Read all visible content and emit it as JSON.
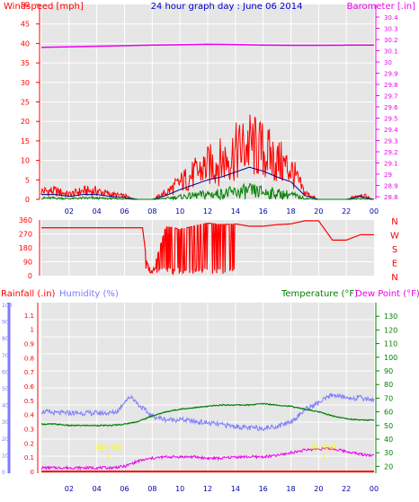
{
  "colors": {
    "background": "#ffffff",
    "plot_background": "#e6e6e6",
    "grid": "#ffffff",
    "wind": "#ff0000",
    "wind_avg": "#00008b",
    "wind_low": "#008000",
    "barometer": "#ee00ee",
    "direction": "#ff0000",
    "rain": "#ff0000",
    "humidity": "#7b7bff",
    "temperature": "#007f00",
    "dewpoint": "#ee00ee",
    "title": "#0000cc",
    "sun": "#ffff00"
  },
  "header": {
    "wind_label": "Windspeed [mph]",
    "title": "24 hour graph day : June 06 2014",
    "baro_label": "Barometer [.in]"
  },
  "bottom_header": {
    "rain_label": "Rainfall (.in)",
    "humidity_label": "Humidity (%)",
    "temp_label": "Temperature (°F)",
    "dew_label": "Dew Point (°F)"
  },
  "x_ticks": [
    "02",
    "04",
    "06",
    "08",
    "10",
    "12",
    "14",
    "16",
    "18",
    "20",
    "22",
    "00"
  ],
  "wind_ticks": [
    "50",
    "45",
    "40",
    "35",
    "30",
    "25",
    "20",
    "15",
    "10",
    "5",
    "0"
  ],
  "baro_ticks": [
    "30.4",
    "30.3",
    "30.2",
    "30.1",
    "30",
    "29.9",
    "29.8",
    "29.7",
    "29.6",
    "29.5",
    "29.4",
    "29.3",
    "29.2",
    "29.1",
    "29",
    "28.9",
    "28.8"
  ],
  "dir_ticks": [
    "360",
    "270",
    "180",
    "90",
    "0"
  ],
  "compass": [
    "N",
    "W",
    "S",
    "E",
    "N"
  ],
  "rain_ticks": [
    "1.1",
    "1",
    "0.9",
    "0.8",
    "0.7",
    "0.6",
    "0.5",
    "0.4",
    "0.3",
    "0.2",
    "0.1",
    "0"
  ],
  "hum_ticks": [
    "100",
    "90",
    "80",
    "70",
    "60",
    "50",
    "40",
    "30",
    "20",
    "10",
    "0"
  ],
  "temp_ticks": [
    "130",
    "120",
    "110",
    "100",
    "90",
    "80",
    "70",
    "60",
    "50",
    "40",
    "30",
    "20"
  ],
  "sun_labels": {
    "sunrise": "Sunrise",
    "sunset": "Sunset"
  },
  "chart_data": [
    {
      "type": "area",
      "x_label": "hour",
      "xlim": [
        0,
        24
      ],
      "ylim": [
        0,
        50
      ],
      "y2lim": [
        28.8,
        30.4
      ],
      "x_ticks": [
        "02",
        "04",
        "06",
        "08",
        "10",
        "12",
        "14",
        "16",
        "18",
        "20",
        "22",
        "00"
      ],
      "series": [
        {
          "name": "Windspeed [mph]",
          "axis": "left",
          "x": [
            0,
            1,
            2,
            3,
            4,
            5,
            6,
            7,
            8,
            9,
            10,
            11,
            12,
            13,
            14,
            15,
            16,
            17,
            18,
            19,
            20,
            21,
            22,
            23,
            24
          ],
          "values": [
            2.5,
            2.5,
            1.5,
            2.5,
            2.5,
            1.5,
            1,
            0,
            0,
            2,
            5,
            7.5,
            10,
            11.5,
            14,
            16.5,
            14.5,
            11.5,
            9,
            2,
            0,
            0,
            0,
            1.5,
            0
          ]
        },
        {
          "name": "Barometer [.in]",
          "axis": "right",
          "x": [
            0,
            2,
            4,
            6,
            8,
            10,
            12,
            14,
            16,
            18,
            20,
            22,
            24
          ],
          "values": [
            30.13,
            30.135,
            30.14,
            30.145,
            30.15,
            30.153,
            30.158,
            30.155,
            30.15,
            30.148,
            30.148,
            30.15,
            30.15
          ]
        }
      ]
    },
    {
      "type": "line",
      "x_label": "hour",
      "xlim": [
        0,
        24
      ],
      "ylim": [
        0,
        360
      ],
      "series": [
        {
          "name": "Wind direction",
          "x": [
            0,
            7.3,
            7.6,
            8,
            9,
            10,
            11,
            12,
            13,
            14,
            15,
            16,
            17,
            18,
            19,
            20,
            21,
            22,
            23,
            24
          ],
          "values": [
            310,
            310,
            90,
            20,
            320,
            300,
            320,
            340,
            330,
            335,
            320,
            320,
            330,
            335,
            355,
            355,
            230,
            230,
            265,
            265
          ]
        }
      ]
    },
    {
      "type": "line",
      "x_label": "hour",
      "xlim": [
        0,
        24
      ],
      "ylim": [
        0,
        100
      ],
      "series": [
        {
          "name": "Rainfall (.in)",
          "axis": "rain",
          "x": [
            0,
            24
          ],
          "values": [
            0,
            0
          ]
        },
        {
          "name": "Humidity (%)",
          "axis": "humidity",
          "x": [
            0,
            1,
            2,
            3,
            4,
            5,
            5.5,
            6,
            6.5,
            7,
            8,
            9,
            10,
            11,
            12,
            13,
            14,
            15,
            16,
            17,
            18,
            18.5,
            19,
            20,
            21,
            22,
            23,
            24
          ],
          "values": [
            36,
            35,
            35,
            35,
            35,
            35,
            36,
            42,
            45,
            40,
            33,
            31,
            31,
            30,
            29,
            28,
            27,
            26,
            26,
            27,
            30,
            33,
            37,
            41,
            46,
            44,
            44,
            43
          ]
        },
        {
          "name": "Temperature (°F)",
          "axis": "temperature",
          "x": [
            0,
            1,
            2,
            3,
            4,
            5,
            6,
            7,
            8,
            9,
            10,
            11,
            12,
            13,
            14,
            15,
            16,
            17,
            18,
            19,
            20,
            21,
            22,
            23,
            24
          ],
          "values": [
            51,
            51,
            50,
            50,
            50,
            50,
            51,
            53,
            57,
            60,
            62,
            63,
            64,
            65,
            65,
            65,
            66,
            65,
            64,
            62,
            60,
            57,
            55,
            54,
            54
          ]
        },
        {
          "name": "Dew Point (°F)",
          "axis": "temperature",
          "x": [
            0,
            1,
            2,
            3,
            4,
            5,
            6,
            7,
            8,
            9,
            10,
            11,
            12,
            13,
            14,
            15,
            16,
            17,
            18,
            19,
            20,
            21,
            22,
            23,
            24
          ],
          "values": [
            19,
            19,
            19,
            19,
            19,
            19,
            20,
            24,
            26,
            27,
            27,
            27,
            26,
            26,
            27,
            27,
            27,
            28,
            30,
            32,
            33,
            33,
            31,
            29,
            28
          ]
        }
      ]
    }
  ]
}
